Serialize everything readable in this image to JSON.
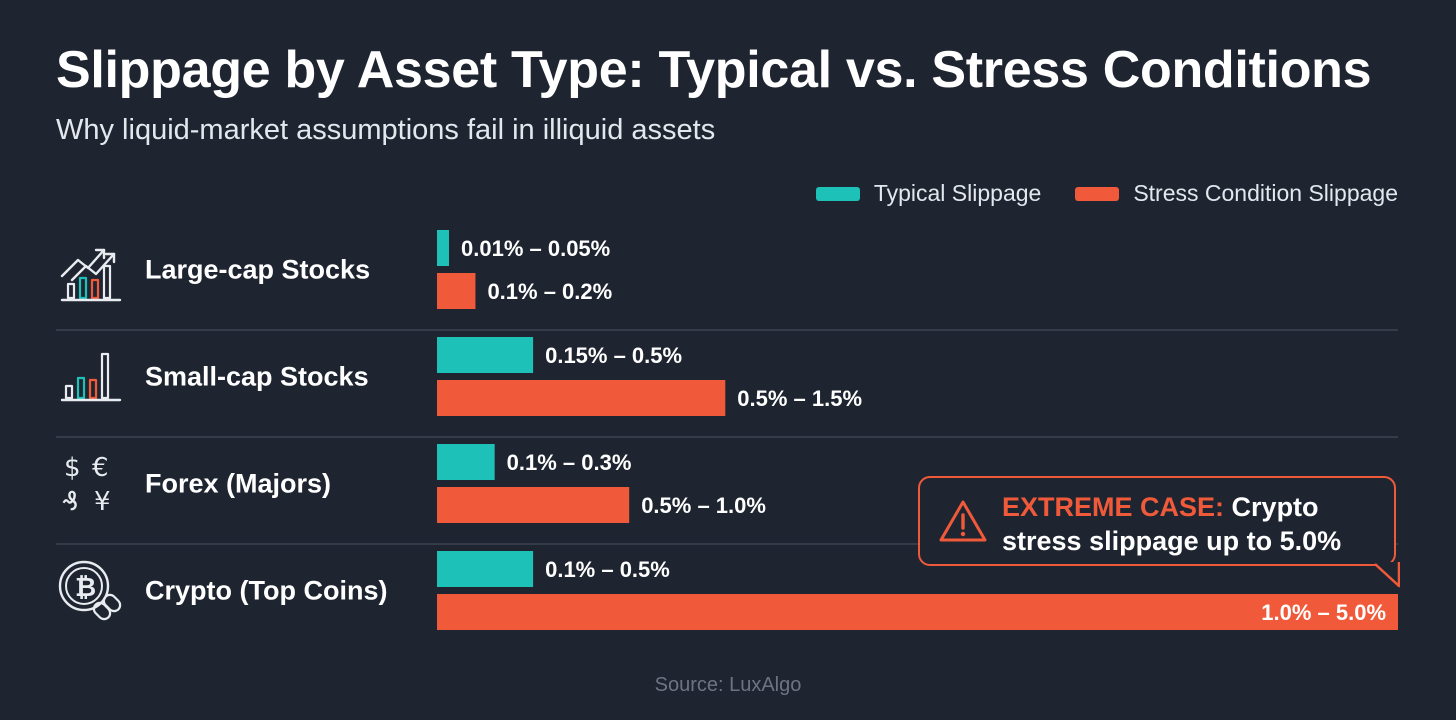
{
  "title": "Slippage by Asset Type: Typical vs. Stress Conditions",
  "subtitle": "Why liquid-market assumptions fail in illiquid assets",
  "legend": {
    "typical": "Typical Slippage",
    "stress": "Stress Condition Slippage"
  },
  "colors": {
    "background": "#1f2530",
    "typical": "#1ec1b7",
    "stress": "#f05a3a",
    "divider": "#3c4452",
    "text": "#ffffff"
  },
  "callout": {
    "icon": "warning-triangle-icon",
    "strong": "EXTREME CASE:",
    "text": "Crypto stress slippage up to 5.0%"
  },
  "source": "Source: LuxAlgo",
  "chart_data": {
    "type": "bar",
    "orientation": "horizontal",
    "xlim": [
      0,
      5.0
    ],
    "grid": false,
    "legend_position": "top-right",
    "categories": [
      "Large-cap Stocks",
      "Small-cap Stocks",
      "Forex (Majors)",
      "Crypto (Top Coins)"
    ],
    "icons": [
      "growth-chart-icon",
      "bar-chart-icon",
      "currency-symbols-icon",
      "bitcoin-link-icon"
    ],
    "series": [
      {
        "name": "Typical Slippage",
        "color": "#1ec1b7",
        "values": [
          0.05,
          0.5,
          0.3,
          0.5
        ],
        "labels": [
          "0.01% – 0.05%",
          "0.15% – 0.5%",
          "0.1% – 0.3%",
          "0.1% – 0.5%"
        ]
      },
      {
        "name": "Stress Condition Slippage",
        "color": "#f05a3a",
        "values": [
          0.2,
          1.5,
          1.0,
          5.0
        ],
        "labels": [
          "0.1% – 0.2%",
          "0.5% – 1.5%",
          "0.5% – 1.0%",
          "1.0% – 5.0%"
        ]
      }
    ]
  }
}
